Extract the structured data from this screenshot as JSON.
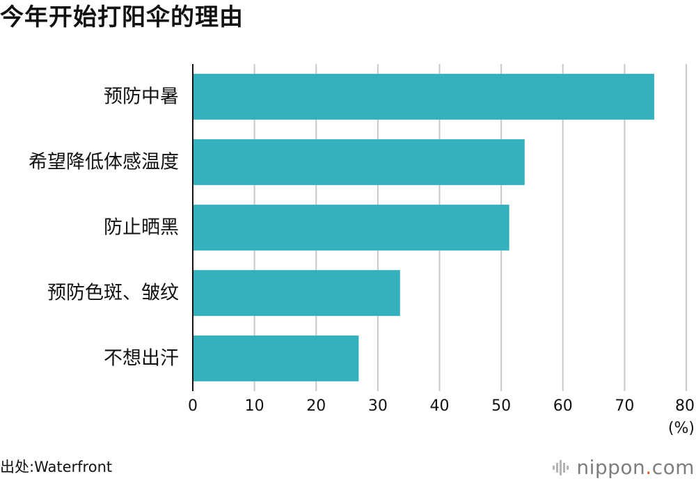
{
  "title": "今年开始打阳伞的理由",
  "source": "出处:Waterfront",
  "brand": {
    "name_before_dot": "nippon",
    "dot": ".",
    "name_after_dot": "com",
    "dot_color": "#e05b2a"
  },
  "chart_data": {
    "type": "bar",
    "orientation": "horizontal",
    "title": "今年开始打阳伞的理由",
    "categories": [
      "预防中暑",
      "希望降低体感温度",
      "防止晒黑",
      "预防色斑、皱纹",
      "不想出汗"
    ],
    "values": [
      74.8,
      53.8,
      51.3,
      33.6,
      26.9
    ],
    "xlim": [
      0,
      80
    ],
    "xticks": [
      0,
      10,
      20,
      30,
      40,
      50,
      60,
      70,
      80
    ],
    "xunit": "(%)",
    "grid": true,
    "bar_color": "#35b0bd"
  }
}
